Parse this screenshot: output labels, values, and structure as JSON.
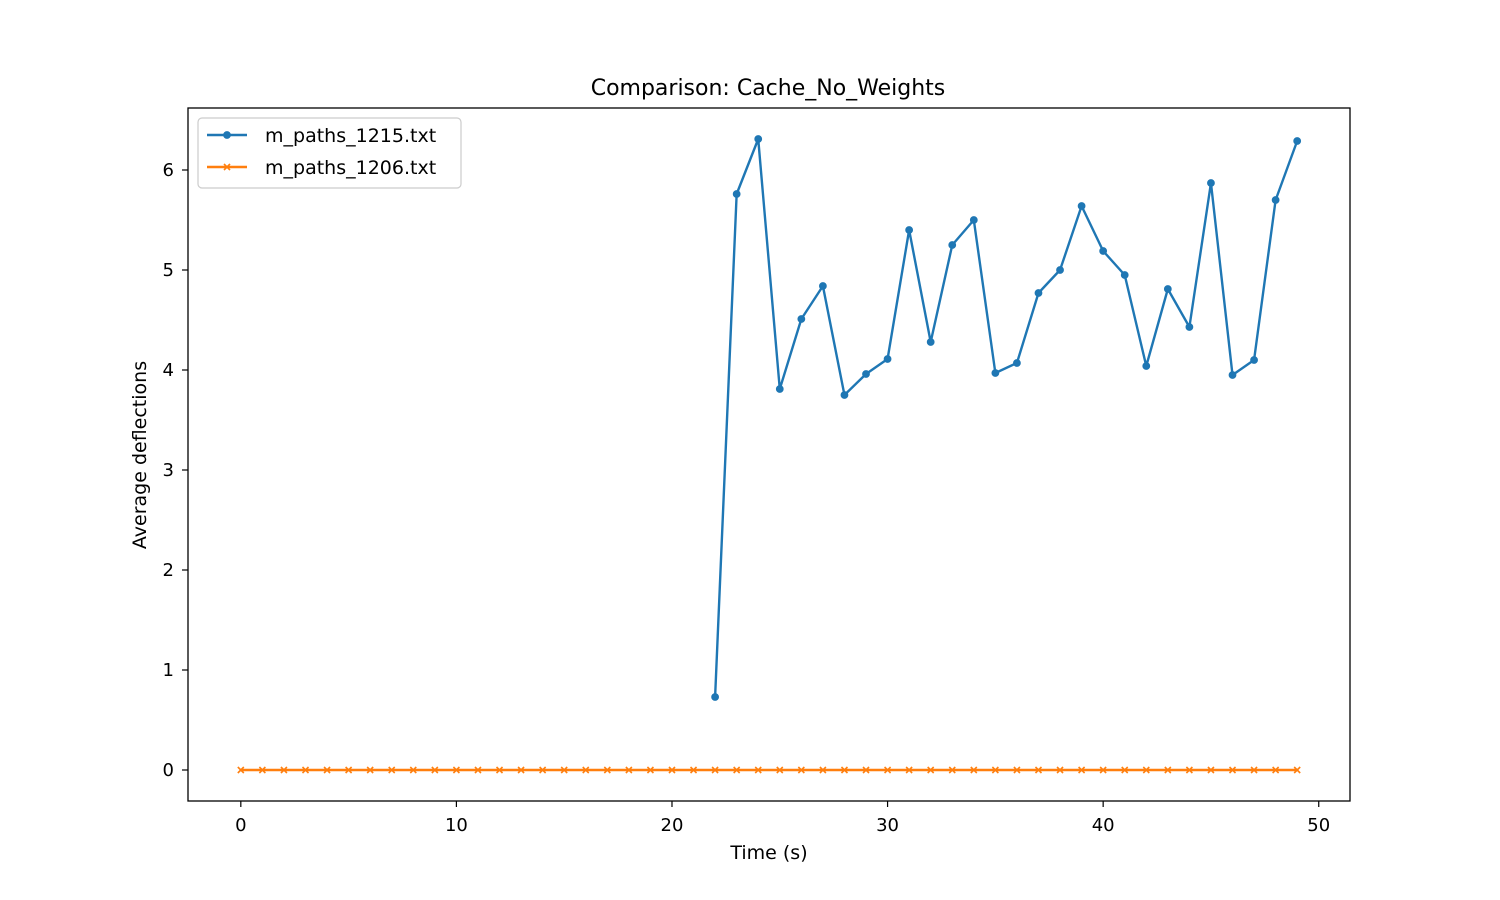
{
  "chart_data": {
    "type": "line",
    "title": "Comparison: Cache_No_Weights",
    "xlabel": "Time (s)",
    "ylabel": "Average deflections",
    "xlim": [
      -2.45,
      51.45
    ],
    "ylim": [
      -0.31,
      6.62
    ],
    "xticks": [
      0,
      10,
      20,
      30,
      40,
      50
    ],
    "yticks": [
      0,
      1,
      2,
      3,
      4,
      5,
      6
    ],
    "grid": false,
    "legend_position": "top-left",
    "series": [
      {
        "name": "m_paths_1215.txt",
        "color": "#1f77b4",
        "marker": "dot",
        "x": [
          22,
          23,
          24,
          25,
          26,
          27,
          28,
          29,
          30,
          31,
          32,
          33,
          34,
          35,
          36,
          37,
          38,
          39,
          40,
          41,
          42,
          43,
          44,
          45,
          46,
          47,
          48,
          49
        ],
        "y": [
          0.73,
          5.76,
          6.31,
          3.81,
          4.51,
          4.84,
          3.75,
          3.96,
          4.11,
          5.4,
          4.28,
          5.25,
          5.5,
          3.97,
          4.07,
          4.77,
          5.0,
          5.64,
          5.19,
          4.95,
          4.04,
          4.81,
          4.43,
          5.87,
          3.95,
          4.1,
          5.7,
          6.29
        ]
      },
      {
        "name": "m_paths_1206.txt",
        "color": "#ff7f0e",
        "marker": "x",
        "x": [
          0,
          1,
          2,
          3,
          4,
          5,
          6,
          7,
          8,
          9,
          10,
          11,
          12,
          13,
          14,
          15,
          16,
          17,
          18,
          19,
          20,
          21,
          22,
          23,
          24,
          25,
          26,
          27,
          28,
          29,
          30,
          31,
          32,
          33,
          34,
          35,
          36,
          37,
          38,
          39,
          40,
          41,
          42,
          43,
          44,
          45,
          46,
          47,
          48,
          49
        ],
        "y": [
          0,
          0,
          0,
          0,
          0,
          0,
          0,
          0,
          0,
          0,
          0,
          0,
          0,
          0,
          0,
          0,
          0,
          0,
          0,
          0,
          0,
          0,
          0,
          0,
          0,
          0,
          0,
          0,
          0,
          0,
          0,
          0,
          0,
          0,
          0,
          0,
          0,
          0,
          0,
          0,
          0,
          0,
          0,
          0,
          0,
          0,
          0,
          0,
          0,
          0
        ]
      }
    ]
  }
}
